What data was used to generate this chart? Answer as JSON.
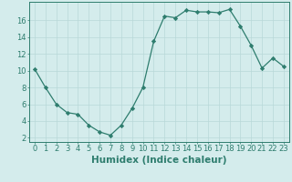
{
  "x": [
    0,
    1,
    2,
    3,
    4,
    5,
    6,
    7,
    8,
    9,
    10,
    11,
    12,
    13,
    14,
    15,
    16,
    17,
    18,
    19,
    20,
    21,
    22,
    23
  ],
  "y": [
    10.2,
    8.0,
    6.0,
    5.0,
    4.8,
    3.5,
    2.7,
    2.3,
    3.5,
    5.5,
    8.0,
    13.5,
    16.5,
    16.3,
    17.2,
    17.0,
    17.0,
    16.9,
    17.3,
    15.3,
    13.0,
    10.3,
    11.5,
    10.5
  ],
  "line_color": "#2e7d6e",
  "marker": "D",
  "marker_size": 2.2,
  "bg_color": "#d4ecec",
  "grid_color": "#b8d8d8",
  "xlabel": "Humidex (Indice chaleur)",
  "xlim": [
    -0.5,
    23.5
  ],
  "ylim": [
    1.5,
    18.2
  ],
  "yticks": [
    2,
    4,
    6,
    8,
    10,
    12,
    14,
    16
  ],
  "xticks": [
    0,
    1,
    2,
    3,
    4,
    5,
    6,
    7,
    8,
    9,
    10,
    11,
    12,
    13,
    14,
    15,
    16,
    17,
    18,
    19,
    20,
    21,
    22,
    23
  ],
  "tick_fontsize": 6.0,
  "xlabel_fontsize": 7.5
}
